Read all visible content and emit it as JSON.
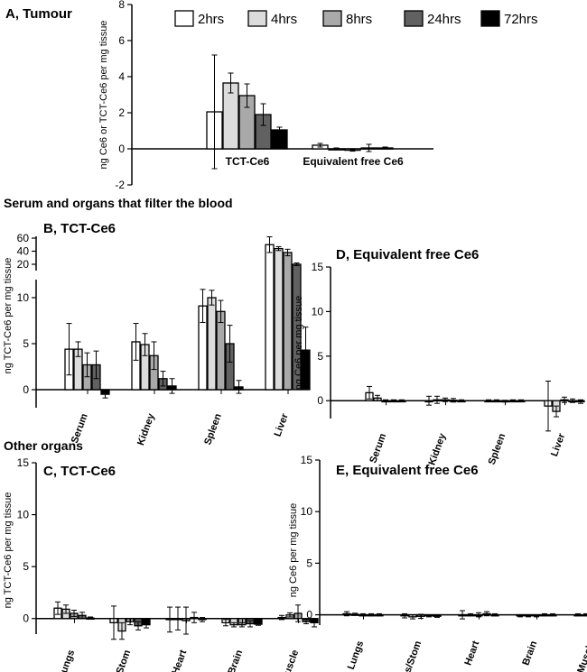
{
  "figure": {
    "section_labels": [
      "Serum and organs that filter the blood",
      "Other organs"
    ]
  },
  "colors": {
    "2hrs": "#ffffff",
    "4hrs": "#dcdcdc",
    "8hrs": "#a9a9a9",
    "24hrs": "#616161",
    "72hrs": "#000000"
  },
  "chart_data": [
    {
      "id": "A",
      "type": "bar",
      "title": "A, Tumour",
      "ylabel": "ng Ce6 or TCT-Ce6 per mg tissue",
      "ylim": [
        -2,
        8
      ],
      "yticks": [
        -2,
        0,
        2,
        4,
        6,
        8
      ],
      "categories": [
        "TCT-Ce6",
        "Equivalent free Ce6"
      ],
      "legend": [
        "2hrs",
        "4hrs",
        "8hrs",
        "24hrs",
        "72hrs"
      ],
      "series": [
        {
          "name": "2hrs",
          "values": [
            2.05,
            0.2
          ],
          "errors": [
            3.15,
            0.1
          ]
        },
        {
          "name": "4hrs",
          "values": [
            3.65,
            0.0
          ],
          "errors": [
            0.55,
            0.05
          ]
        },
        {
          "name": "8hrs",
          "values": [
            2.95,
            -0.08
          ],
          "errors": [
            0.65,
            0.05
          ]
        },
        {
          "name": "24hrs",
          "values": [
            1.9,
            0.05
          ],
          "errors": [
            0.6,
            0.2
          ]
        },
        {
          "name": "72hrs",
          "values": [
            1.05,
            0.05
          ],
          "errors": [
            0.15,
            0.05
          ]
        }
      ]
    },
    {
      "id": "B",
      "type": "bar",
      "title": "B, TCT-Ce6",
      "ylabel": "ng TCT-Ce6 per mg tissue",
      "ylim": [
        -2,
        70
      ],
      "yticks": [
        0,
        5,
        10,
        20,
        40,
        60
      ],
      "broken_axis": {
        "lower": [
          -2,
          12
        ],
        "upper": [
          12,
          70
        ]
      },
      "categories": [
        "Serum",
        "Kidney",
        "Spleen",
        "Liver"
      ],
      "series": [
        {
          "name": "2hrs",
          "values": [
            4.4,
            5.2,
            9.1,
            50
          ],
          "errors": [
            2.8,
            2.0,
            1.8,
            12
          ]
        },
        {
          "name": "4hrs",
          "values": [
            4.4,
            4.9,
            10.0,
            44
          ],
          "errors": [
            0.8,
            1.2,
            0.8,
            3
          ]
        },
        {
          "name": "8hrs",
          "values": [
            2.7,
            3.7,
            8.5,
            38
          ],
          "errors": [
            1.3,
            1.5,
            1.2,
            5
          ]
        },
        {
          "name": "24hrs",
          "values": [
            2.7,
            1.2,
            5.0,
            20
          ],
          "errors": [
            1.5,
            0.8,
            2.0,
            2
          ]
        },
        {
          "name": "72hrs",
          "values": [
            -0.5,
            0.4,
            0.3,
            4.3
          ],
          "errors": [
            0.4,
            0.8,
            0.7,
            2.5
          ]
        }
      ]
    },
    {
      "id": "C",
      "type": "bar",
      "title": "C, TCT-Ce6",
      "ylabel": "ng TCT-Ce6 per mg tissue",
      "ylim": [
        -1.5,
        15
      ],
      "yticks": [
        0,
        5,
        10,
        15
      ],
      "categories": [
        "Lungs",
        "Os/Stom",
        "Heart",
        "Brain",
        "Muscle"
      ],
      "series": [
        {
          "name": "2hrs",
          "values": [
            1.0,
            -0.4,
            -0.1,
            -0.4,
            0.1
          ],
          "errors": [
            0.6,
            1.6,
            1.2,
            0.3,
            0.2
          ]
        },
        {
          "name": "4hrs",
          "values": [
            0.9,
            -1.2,
            0.0,
            -0.6,
            0.35
          ],
          "errors": [
            0.4,
            0.8,
            1.1,
            0.2,
            0.2
          ]
        },
        {
          "name": "8hrs",
          "values": [
            0.5,
            -0.3,
            -0.2,
            -0.6,
            0.5
          ],
          "errors": [
            0.3,
            0.3,
            1.3,
            0.2,
            0.8
          ]
        },
        {
          "name": "24hrs",
          "values": [
            0.3,
            -0.7,
            0.1,
            -0.5,
            -0.3
          ],
          "errors": [
            0.3,
            0.4,
            0.5,
            0.3,
            0.2
          ]
        },
        {
          "name": "72hrs",
          "values": [
            0.05,
            -0.6,
            -0.1,
            -0.55,
            -0.4
          ],
          "errors": [
            0.1,
            0.3,
            0.2,
            0.1,
            0.4
          ]
        }
      ]
    },
    {
      "id": "D",
      "type": "bar",
      "title": "D, Equivalent free Ce6",
      "ylabel": "ng Ce6 per mg tissue",
      "ylim": [
        -2,
        15
      ],
      "yticks": [
        0,
        5,
        10,
        15
      ],
      "categories": [
        "Serum",
        "Kidney",
        "Spleen",
        "Liver"
      ],
      "series": [
        {
          "name": "2hrs",
          "values": [
            0.9,
            0.0,
            0.0,
            -0.6
          ],
          "errors": [
            0.7,
            0.5,
            0.1,
            2.8
          ]
        },
        {
          "name": "4hrs",
          "values": [
            0.3,
            0.1,
            0.0,
            -1.2
          ],
          "errors": [
            0.3,
            0.4,
            0.1,
            0.6
          ]
        },
        {
          "name": "8hrs",
          "values": [
            0.0,
            0.1,
            -0.05,
            0.1
          ],
          "errors": [
            0.1,
            0.2,
            0.1,
            0.3
          ]
        },
        {
          "name": "24hrs",
          "values": [
            0.0,
            0.05,
            0.0,
            0.0
          ],
          "errors": [
            0.1,
            0.2,
            0.1,
            0.2
          ]
        },
        {
          "name": "72hrs",
          "values": [
            0.0,
            0.0,
            0.0,
            -0.1
          ],
          "errors": [
            0.1,
            0.1,
            0.1,
            0.2
          ]
        }
      ]
    },
    {
      "id": "E",
      "type": "bar",
      "title": "E, Equivalent free Ce6",
      "ylabel": "ng Ce6 per mg tissue",
      "ylim": [
        -1,
        15
      ],
      "yticks": [
        0,
        5,
        10,
        15
      ],
      "categories": [
        "Lungs",
        "Os/Stom",
        "Heart",
        "Brain",
        "Muscle"
      ],
      "series": [
        {
          "name": "2hrs",
          "values": [
            0.1,
            -0.1,
            0.0,
            -0.1,
            0.0
          ],
          "errors": [
            0.2,
            0.2,
            0.4,
            0.1,
            0.1
          ]
        },
        {
          "name": "4hrs",
          "values": [
            0.05,
            -0.2,
            0.0,
            -0.1,
            0.0
          ],
          "errors": [
            0.1,
            0.2,
            0.1,
            0.1,
            0.1
          ]
        },
        {
          "name": "8hrs",
          "values": [
            0.0,
            -0.15,
            0.0,
            -0.1,
            0.0
          ],
          "errors": [
            0.1,
            0.2,
            0.2,
            0.1,
            0.1
          ]
        },
        {
          "name": "24hrs",
          "values": [
            0.0,
            -0.1,
            0.1,
            0.0,
            0.0
          ],
          "errors": [
            0.1,
            0.1,
            0.2,
            0.1,
            0.1
          ]
        },
        {
          "name": "72hrs",
          "values": [
            0.0,
            -0.15,
            0.0,
            0.0,
            0.0
          ],
          "errors": [
            0.1,
            0.1,
            0.1,
            0.1,
            0.1
          ]
        }
      ]
    }
  ]
}
